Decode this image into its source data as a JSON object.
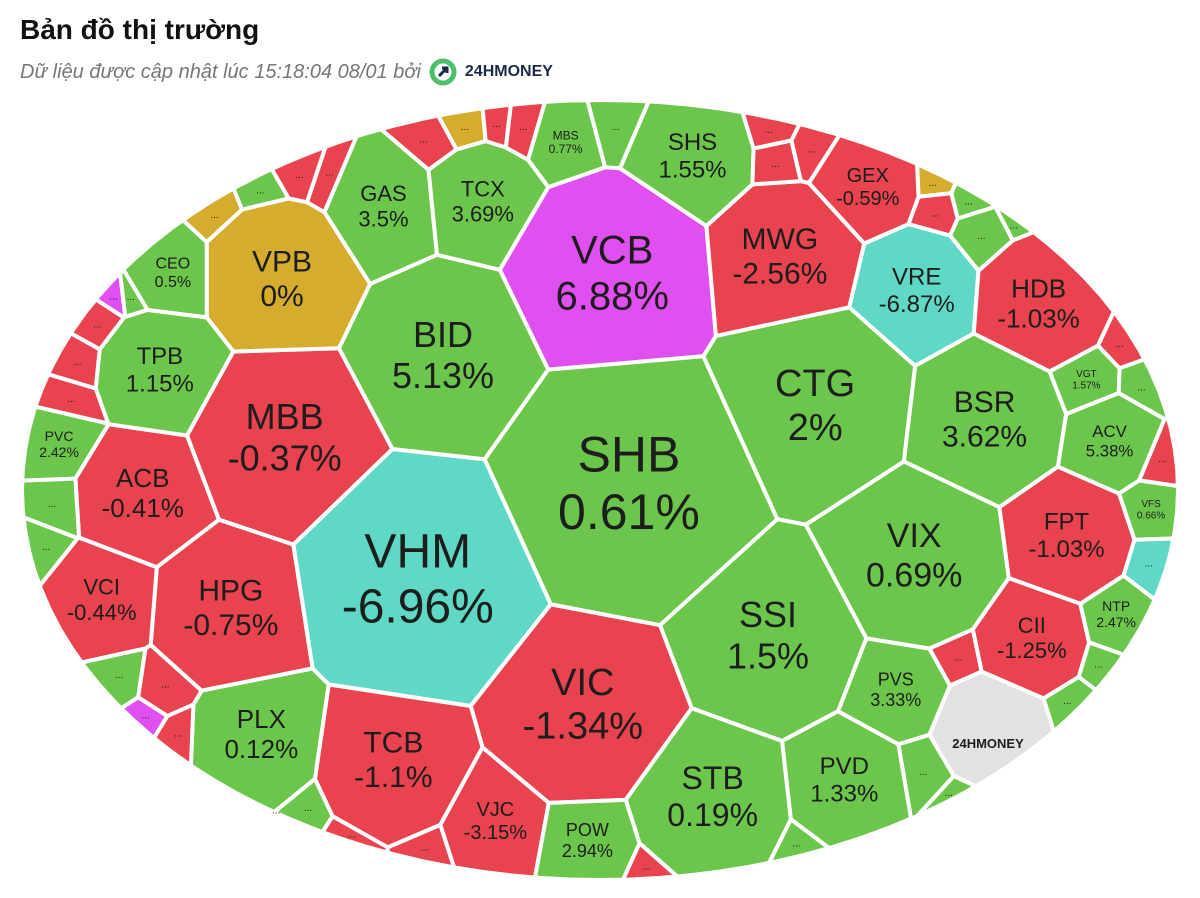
{
  "header": {
    "title": "Bản đồ thị trường",
    "subtitle": "Dữ liệu được cập nhật lúc 15:18:04 08/01 bởi",
    "logo": "24HMONEY"
  },
  "cells": [
    {
      "ticker": "VCB",
      "change": "6.88%",
      "color": "#e04ff0"
    },
    {
      "ticker": "SHB",
      "change": "0.61%",
      "color": "#6cc64c"
    },
    {
      "ticker": "VHM",
      "change": "-6.96%",
      "color": "#5fd8c6"
    },
    {
      "ticker": "CTG",
      "change": "2%",
      "color": "#6cc64c"
    },
    {
      "ticker": "BID",
      "change": "5.13%",
      "color": "#6cc64c"
    },
    {
      "ticker": "MBB",
      "change": "-0.37%",
      "color": "#e8434f"
    },
    {
      "ticker": "MWG",
      "change": "-2.56%",
      "color": "#e8434f"
    },
    {
      "ticker": "VRE",
      "change": "-6.87%",
      "color": "#5fd8c6"
    },
    {
      "ticker": "HDB",
      "change": "-1.03%",
      "color": "#e8434f"
    },
    {
      "ticker": "BSR",
      "change": "3.62%",
      "color": "#6cc64c"
    },
    {
      "ticker": "VIX",
      "change": "0.69%",
      "color": "#6cc64c"
    },
    {
      "ticker": "SSI",
      "change": "1.5%",
      "color": "#6cc64c"
    },
    {
      "ticker": "VIC",
      "change": "-1.34%",
      "color": "#e8434f"
    },
    {
      "ticker": "HPG",
      "change": "-0.75%",
      "color": "#e8434f"
    },
    {
      "ticker": "ACB",
      "change": "-0.41%",
      "color": "#e8434f"
    },
    {
      "ticker": "VCI",
      "change": "-0.44%",
      "color": "#e8434f"
    },
    {
      "ticker": "TCB",
      "change": "-1.1%",
      "color": "#e8434f"
    },
    {
      "ticker": "PLX",
      "change": "0.12%",
      "color": "#6cc64c"
    },
    {
      "ticker": "STB",
      "change": "0.19%",
      "color": "#6cc64c"
    },
    {
      "ticker": "PVD",
      "change": "1.33%",
      "color": "#6cc64c"
    },
    {
      "ticker": "PVS",
      "change": "3.33%",
      "color": "#6cc64c"
    },
    {
      "ticker": "FPT",
      "change": "-1.03%",
      "color": "#e8434f"
    },
    {
      "ticker": "CII",
      "change": "-1.25%",
      "color": "#e8434f"
    },
    {
      "ticker": "VJC",
      "change": "-3.15%",
      "color": "#e8434f"
    },
    {
      "ticker": "POW",
      "change": "2.94%",
      "color": "#6cc64c"
    },
    {
      "ticker": "GAS",
      "change": "3.5%",
      "color": "#6cc64c"
    },
    {
      "ticker": "TCX",
      "change": "3.69%",
      "color": "#6cc64c"
    },
    {
      "ticker": "SHS",
      "change": "1.55%",
      "color": "#6cc64c"
    },
    {
      "ticker": "VPB",
      "change": "0%",
      "color": "#d6ac2e"
    },
    {
      "ticker": "TPB",
      "change": "1.15%",
      "color": "#6cc64c"
    },
    {
      "ticker": "CEO",
      "change": "0.5%",
      "color": "#6cc64c"
    },
    {
      "ticker": "GEX",
      "change": "-0.59%",
      "color": "#e8434f"
    },
    {
      "ticker": "MBS",
      "change": "0.77%",
      "color": "#6cc64c"
    },
    {
      "ticker": "ACV",
      "change": "5.38%",
      "color": "#6cc64c"
    },
    {
      "ticker": "VGT",
      "change": "1.57%",
      "color": "#6cc64c"
    },
    {
      "ticker": "PVC",
      "change": "2.42%",
      "color": "#6cc64c"
    },
    {
      "ticker": "VFS",
      "change": "0.66%",
      "color": "#6cc64c"
    },
    {
      "ticker": "NTP",
      "change": "2.47%",
      "color": "#6cc64c"
    },
    {
      "ticker": "24HMONEY",
      "color": "#e2e2e2"
    },
    {
      "ticker": "...",
      "color": "#6cc64c"
    },
    {
      "ticker": "...",
      "color": "#6cc64c"
    },
    {
      "ticker": "...",
      "color": "#6cc64c"
    },
    {
      "ticker": "...",
      "color": "#e8434f"
    },
    {
      "ticker": "...",
      "color": "#e04ff0"
    },
    {
      "ticker": "...",
      "color": "#e8434f"
    },
    {
      "ticker": "...",
      "color": "#6cc64c"
    },
    {
      "ticker": "...",
      "color": "#e8434f"
    },
    {
      "ticker": "...",
      "color": "#e8434f"
    },
    {
      "ticker": "...",
      "color": "#6cc64c"
    },
    {
      "ticker": "...",
      "color": "#6cc64c"
    },
    {
      "ticker": "...",
      "color": "#e8434f"
    },
    {
      "ticker": "...",
      "color": "#e8434f"
    },
    {
      "ticker": "...",
      "color": "#e8434f"
    },
    {
      "ticker": "...",
      "color": "#e8434f"
    },
    {
      "ticker": "...",
      "color": "#d6ac2e"
    },
    {
      "ticker": "...",
      "color": "#e8434f"
    },
    {
      "ticker": "...",
      "color": "#6cc64c"
    },
    {
      "ticker": "...",
      "color": "#6cc64c"
    },
    {
      "ticker": "...",
      "color": "#6cc64c"
    },
    {
      "ticker": "...",
      "color": "#e8434f"
    },
    {
      "ticker": "...",
      "color": "#6cc64c"
    },
    {
      "ticker": "...",
      "color": "#e8434f"
    },
    {
      "ticker": "...",
      "color": "#5fd8c6"
    },
    {
      "ticker": "...",
      "color": "#6cc64c"
    },
    {
      "ticker": "...",
      "color": "#6cc64c"
    },
    {
      "ticker": "...",
      "color": "#e8434f"
    },
    {
      "ticker": "...",
      "color": "#6cc64c"
    },
    {
      "ticker": "...",
      "color": "#6cc64c"
    },
    {
      "ticker": "...",
      "color": "#6cc64c"
    },
    {
      "ticker": "...",
      "color": "#6cc64c"
    },
    {
      "ticker": "...",
      "color": "#e8434f"
    },
    {
      "ticker": "...",
      "color": "#6cc64c"
    },
    {
      "ticker": "...",
      "color": "#e8434f"
    },
    {
      "ticker": "...",
      "color": "#e8434f"
    },
    {
      "ticker": "...",
      "color": "#6cc64c"
    },
    {
      "ticker": "...",
      "color": "#e04ff0"
    },
    {
      "ticker": "...",
      "color": "#e8434f"
    },
    {
      "ticker": "...",
      "color": "#e8434f"
    },
    {
      "ticker": "...",
      "color": "#e8434f"
    },
    {
      "ticker": "...",
      "color": "#d6ac2e"
    },
    {
      "ticker": "...",
      "color": "#e8434f"
    },
    {
      "ticker": "...",
      "color": "#e8434f"
    },
    {
      "ticker": "...",
      "color": "#d6ac2e"
    }
  ]
}
